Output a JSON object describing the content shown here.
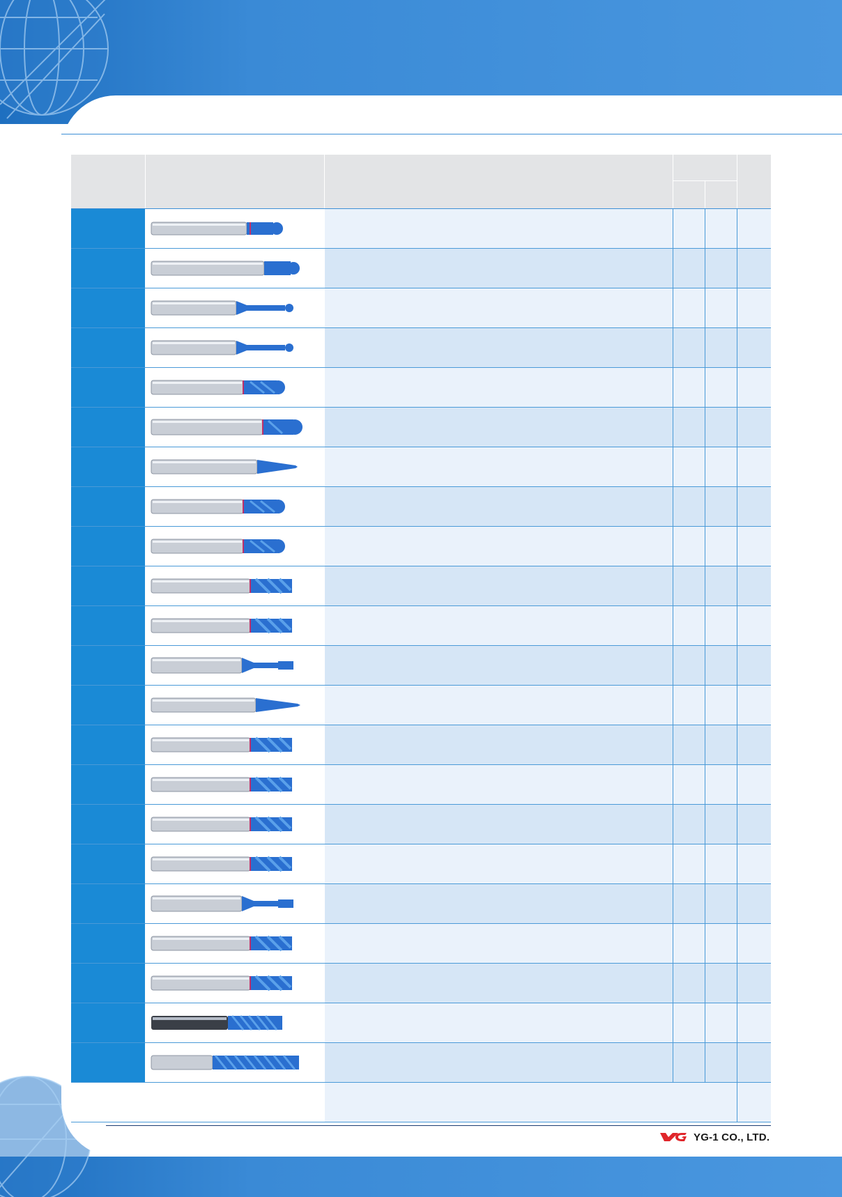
{
  "colors": {
    "banner": "#3a8ad6",
    "code_cell": "#1a8ad6",
    "row_light": "#eaf2fb",
    "row_dark": "#d6e6f6",
    "header": "#e3e4e6",
    "tool_shank": "#c8ccd2",
    "tool_coating": "#2a6fd0",
    "logo_red": "#e0262b"
  },
  "footer": {
    "company": "YG-1 CO., LTD."
  },
  "rows": [
    {
      "tool": "corner-radius-endmill-icon"
    },
    {
      "tool": "corner-radius-endmill-long-icon"
    },
    {
      "tool": "long-neck-ball-endmill-icon"
    },
    {
      "tool": "long-neck-ball-endmill-icon"
    },
    {
      "tool": "ball-endmill-icon"
    },
    {
      "tool": "ball-endmill-long-icon"
    },
    {
      "tool": "tapered-ball-endmill-icon"
    },
    {
      "tool": "ball-endmill-icon"
    },
    {
      "tool": "ball-endmill-icon"
    },
    {
      "tool": "square-endmill-icon"
    },
    {
      "tool": "square-endmill-icon"
    },
    {
      "tool": "long-neck-square-endmill-icon"
    },
    {
      "tool": "tapered-endmill-icon"
    },
    {
      "tool": "square-endmill-icon"
    },
    {
      "tool": "square-endmill-icon"
    },
    {
      "tool": "square-endmill-icon"
    },
    {
      "tool": "square-endmill-icon"
    },
    {
      "tool": "long-neck-square-endmill-icon"
    },
    {
      "tool": "square-endmill-icon"
    },
    {
      "tool": "square-endmill-icon"
    },
    {
      "tool": "multi-flute-endmill-icon"
    },
    {
      "tool": "multi-flute-endmill-long-icon"
    }
  ]
}
